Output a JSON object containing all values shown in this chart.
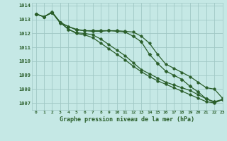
{
  "title": "Graphe pression niveau de la mer (hPa)",
  "bg_color": "#c5e8e5",
  "grid_color": "#a0c8c5",
  "line_color": "#2a5e2a",
  "xlim": [
    -0.5,
    23
  ],
  "ylim": [
    1006.5,
    1014.2
  ],
  "yticks": [
    1007,
    1008,
    1009,
    1010,
    1011,
    1012,
    1013,
    1014
  ],
  "xticks": [
    0,
    1,
    2,
    3,
    4,
    5,
    6,
    7,
    8,
    9,
    10,
    11,
    12,
    13,
    14,
    15,
    16,
    17,
    18,
    19,
    20,
    21,
    22,
    23
  ],
  "series": [
    [
      1013.4,
      1013.2,
      1013.5,
      1012.75,
      1012.5,
      1012.25,
      1012.2,
      1012.2,
      1012.2,
      1012.2,
      1012.2,
      1012.15,
      1012.1,
      1011.8,
      1011.3,
      1010.5,
      1009.8,
      1009.5,
      1009.2,
      1008.9,
      1008.5,
      1008.1,
      1008.0,
      1007.35
    ],
    [
      1013.4,
      1013.2,
      1013.55,
      1012.8,
      1012.5,
      1012.3,
      1012.2,
      1012.15,
      1012.15,
      1012.2,
      1012.15,
      1012.1,
      1011.8,
      1011.4,
      1010.5,
      1009.85,
      1009.3,
      1009.0,
      1008.7,
      1008.2,
      1007.8,
      1007.3,
      1007.1,
      1007.25
    ],
    [
      1013.4,
      1013.2,
      1013.5,
      1012.8,
      1012.3,
      1012.05,
      1012.0,
      1011.9,
      1011.6,
      1011.2,
      1010.8,
      1010.4,
      1009.9,
      1009.4,
      1009.1,
      1008.8,
      1008.5,
      1008.3,
      1008.1,
      1007.9,
      1007.6,
      1007.3,
      1007.05,
      1007.25
    ],
    [
      1013.4,
      1013.2,
      1013.5,
      1012.8,
      1012.3,
      1012.0,
      1011.9,
      1011.7,
      1011.3,
      1010.9,
      1010.5,
      1010.1,
      1009.65,
      1009.25,
      1008.9,
      1008.6,
      1008.35,
      1008.1,
      1007.85,
      1007.6,
      1007.35,
      1007.1,
      1007.0,
      1007.25
    ]
  ],
  "marker_styles": [
    "o",
    "D",
    "o",
    "o"
  ],
  "marker_sizes": [
    2.5,
    2.5,
    2.5,
    2.5
  ],
  "linewidths": [
    0.9,
    0.9,
    0.9,
    0.9
  ]
}
